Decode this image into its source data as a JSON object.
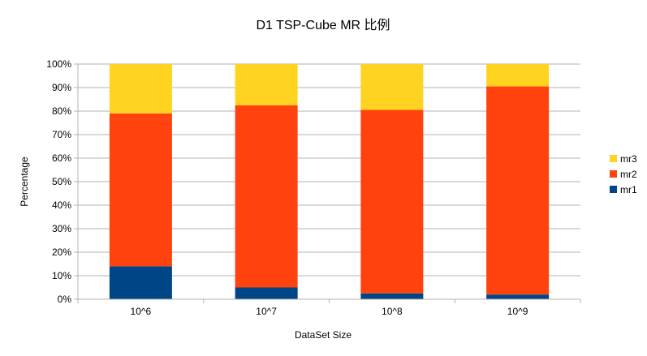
{
  "chart_data": {
    "type": "bar",
    "stacked": true,
    "percent": true,
    "title": "D1 TSP-Cube MR  比例",
    "xlabel": "DataSet Size",
    "ylabel": "Percentage",
    "categories": [
      "10^6",
      "10^7",
      "10^8",
      "10^9"
    ],
    "series": [
      {
        "name": "mr1",
        "color": "#004586",
        "values": [
          14,
          5,
          2.5,
          2
        ]
      },
      {
        "name": "mr2",
        "color": "#ff420e",
        "values": [
          65,
          77.5,
          78,
          88.5
        ]
      },
      {
        "name": "mr3",
        "color": "#ffd320",
        "values": [
          21,
          17.5,
          19.5,
          9.5
        ]
      }
    ],
    "ylim": [
      0,
      100
    ],
    "yticks": [
      "0%",
      "10%",
      "20%",
      "30%",
      "40%",
      "50%",
      "60%",
      "70%",
      "80%",
      "90%",
      "100%"
    ],
    "grid": true,
    "legend_position": "right"
  }
}
